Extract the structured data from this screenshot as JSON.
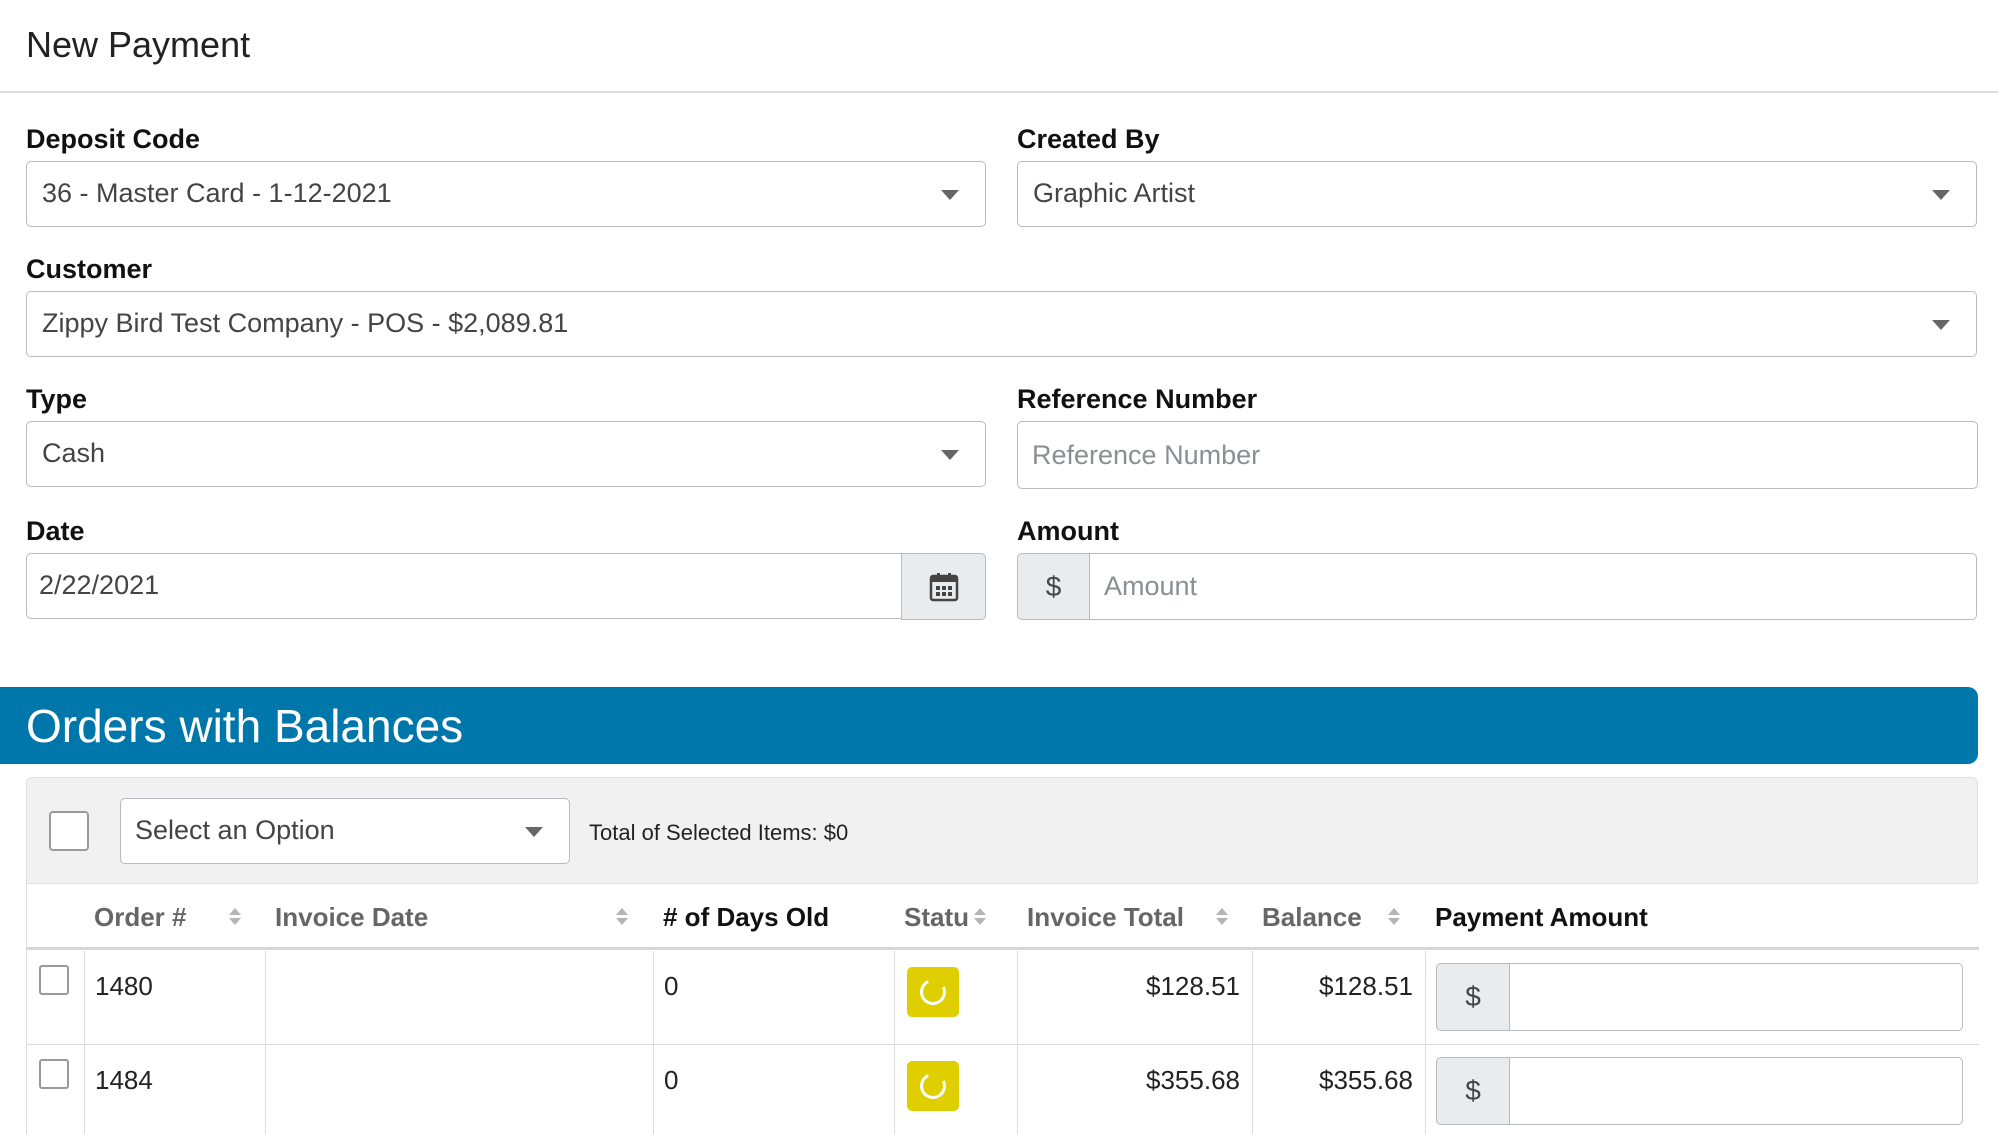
{
  "page": {
    "title": "New Payment"
  },
  "form": {
    "deposit_code": {
      "label": "Deposit Code",
      "value": "36 - Master Card - 1-12-2021"
    },
    "created_by": {
      "label": "Created By",
      "value": "Graphic Artist"
    },
    "customer": {
      "label": "Customer",
      "value": "Zippy Bird Test Company - POS - $2,089.81"
    },
    "type": {
      "label": "Type",
      "value": "Cash"
    },
    "reference_number": {
      "label": "Reference Number",
      "placeholder": "Reference Number",
      "value": ""
    },
    "date": {
      "label": "Date",
      "value": "2/22/2021",
      "icon": "calendar-icon"
    },
    "amount": {
      "label": "Amount",
      "prefix": "$",
      "placeholder": "Amount",
      "value": ""
    }
  },
  "orders": {
    "title": "Orders with Balances",
    "toolbar": {
      "select_placeholder": "Select an Option",
      "total_label": "Total of Selected Items: $0"
    },
    "columns": {
      "order": "Order #",
      "invoice_date": "Invoice Date",
      "days_old": "# of Days Old",
      "status": "Statu",
      "invoice_total": "Invoice Total",
      "balance": "Balance",
      "payment_amount": "Payment Amount"
    },
    "rows": [
      {
        "order": "1480",
        "invoice_date": "",
        "days_old": "0",
        "status_color": "#e0cf00",
        "invoice_total": "$128.51",
        "balance": "$128.51",
        "payment_prefix": "$",
        "payment_value": ""
      },
      {
        "order": "1484",
        "invoice_date": "",
        "days_old": "0",
        "status_color": "#e0cf00",
        "invoice_total": "$355.68",
        "balance": "$355.68",
        "payment_prefix": "$",
        "payment_value": ""
      }
    ]
  },
  "colors": {
    "accent": "#0077aa",
    "status_pending": "#e0cf00"
  }
}
